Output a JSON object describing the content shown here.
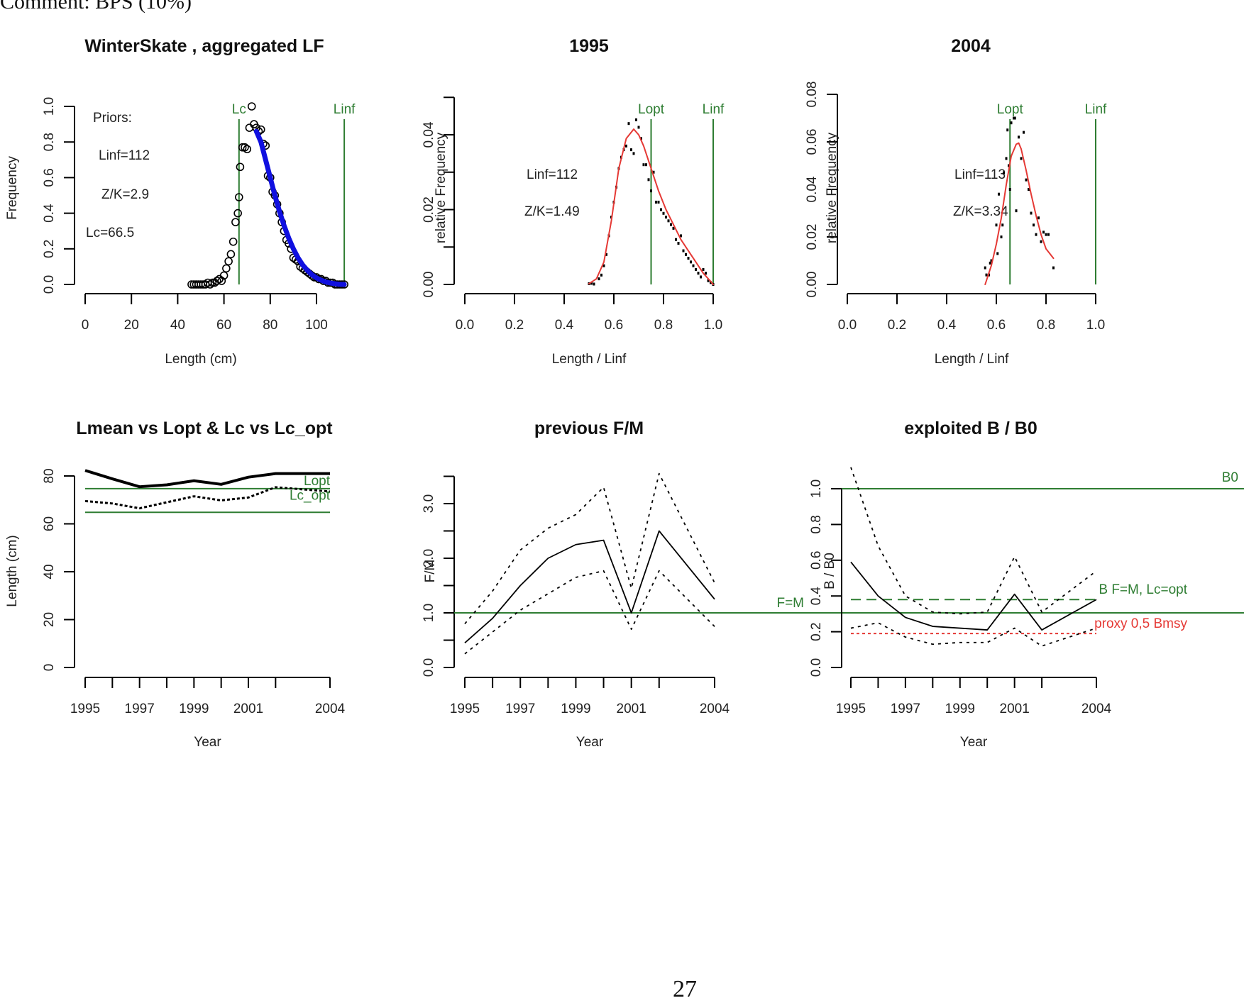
{
  "page": {
    "caption": "Comment: BPS (10%)",
    "page_number": "27"
  },
  "colors": {
    "ref_line": "#2e7d32",
    "fit_blue": "#1010e0",
    "fit_red": "#e53935",
    "data": "#000000"
  },
  "chart_data": [
    {
      "id": "aggregated-lf",
      "type": "scatter",
      "title": "WinterSkate , aggregated LF",
      "xlabel": "Length (cm)",
      "ylabel": "Frequency",
      "xlim": [
        0,
        112
      ],
      "ylim": [
        0,
        1.1
      ],
      "xticks": [
        0,
        20,
        40,
        60,
        80,
        100
      ],
      "xtick_labels": [
        "0",
        "20",
        "40",
        "60",
        "80",
        "100"
      ],
      "yticks": [
        0,
        0.2,
        0.4,
        0.6,
        0.8,
        1.0
      ],
      "ytick_labels": [
        "0.0",
        "0.2",
        "0.4",
        "0.6",
        "0.8",
        "1.0"
      ],
      "annotations": [
        "Priors:",
        "Linf=112",
        "Z/K=2.9",
        "Lc=66.5"
      ],
      "vlines": [
        {
          "label": "Lc",
          "x": 66.5
        },
        {
          "label": "Linf",
          "x": 112
        }
      ],
      "points": {
        "x": [
          46,
          47,
          48,
          49,
          50,
          51,
          52,
          53,
          54,
          55,
          56,
          57,
          58,
          59,
          60,
          61,
          62,
          63,
          64,
          65,
          66,
          66.5,
          67,
          68,
          69,
          70,
          71,
          72,
          73,
          74,
          75,
          76,
          77,
          78,
          79,
          80,
          81,
          82,
          83,
          84,
          85,
          86,
          87,
          88,
          89,
          90,
          91,
          92,
          93,
          94,
          95,
          96,
          97,
          98,
          99,
          100,
          101,
          102,
          103,
          104,
          105,
          106,
          107,
          108,
          109,
          110,
          111,
          112
        ],
        "y": [
          0,
          0,
          0,
          0,
          0,
          0,
          0,
          0.01,
          0,
          0.01,
          0.01,
          0.02,
          0.03,
          0.02,
          0.05,
          0.09,
          0.13,
          0.17,
          0.24,
          0.35,
          0.4,
          0.49,
          0.66,
          0.77,
          0.77,
          0.76,
          0.88,
          1.0,
          0.9,
          0.88,
          0.86,
          0.87,
          0.79,
          0.78,
          0.61,
          0.6,
          0.52,
          0.5,
          0.45,
          0.4,
          0.35,
          0.3,
          0.25,
          0.23,
          0.2,
          0.15,
          0.14,
          0.13,
          0.1,
          0.09,
          0.08,
          0.07,
          0.06,
          0.05,
          0.04,
          0.04,
          0.03,
          0.03,
          0.02,
          0.02,
          0.01,
          0.01,
          0.01,
          0,
          0,
          0,
          0,
          0
        ]
      },
      "fit": {
        "name": "fitted curve",
        "x": [
          74,
          76,
          78,
          80,
          82,
          84,
          86,
          88,
          90,
          92,
          94,
          96,
          98,
          100,
          102,
          104,
          106,
          108,
          110,
          112
        ],
        "y": [
          0.86,
          0.8,
          0.7,
          0.6,
          0.5,
          0.41,
          0.33,
          0.26,
          0.2,
          0.15,
          0.11,
          0.08,
          0.055,
          0.037,
          0.024,
          0.014,
          0.008,
          0.004,
          0.001,
          0
        ]
      }
    },
    {
      "id": "year-1995",
      "type": "scatter",
      "title": "1995",
      "xlabel": "Length / Linf",
      "ylabel": "relative Frequency",
      "xlim": [
        0,
        1.0
      ],
      "ylim": [
        0,
        0.05
      ],
      "xticks": [
        0,
        0.2,
        0.4,
        0.6,
        0.8,
        1.0
      ],
      "xtick_labels": [
        "0.0",
        "0.2",
        "0.4",
        "0.6",
        "0.8",
        "1.0"
      ],
      "yticks": [
        0,
        0.01,
        0.02,
        0.03,
        0.04,
        0.05
      ],
      "ytick_labels": [
        "0.00",
        "",
        "0.02",
        "",
        "0.04",
        ""
      ],
      "annotations": [
        "Linf=112",
        "Z/K=1.49"
      ],
      "vlines": [
        {
          "label": "Lopt",
          "x": 0.75
        },
        {
          "label": "Linf",
          "x": 1.0
        }
      ],
      "points": {
        "x": [
          0.5,
          0.51,
          0.52,
          0.54,
          0.55,
          0.56,
          0.57,
          0.58,
          0.59,
          0.6,
          0.61,
          0.62,
          0.63,
          0.64,
          0.65,
          0.66,
          0.67,
          0.68,
          0.69,
          0.7,
          0.71,
          0.72,
          0.73,
          0.74,
          0.75,
          0.76,
          0.77,
          0.78,
          0.79,
          0.8,
          0.81,
          0.82,
          0.83,
          0.84,
          0.85,
          0.86,
          0.87,
          0.88,
          0.89,
          0.9,
          0.91,
          0.92,
          0.93,
          0.94,
          0.95,
          0.96,
          0.97,
          0.98,
          0.99,
          1.0
        ],
        "y": [
          0.0002,
          0.0003,
          0.0001,
          0.0015,
          0.0025,
          0.005,
          0.008,
          0.013,
          0.018,
          0.022,
          0.026,
          0.031,
          0.034,
          0.036,
          0.037,
          0.043,
          0.036,
          0.035,
          0.044,
          0.042,
          0.039,
          0.032,
          0.032,
          0.028,
          0.025,
          0.03,
          0.022,
          0.022,
          0.02,
          0.019,
          0.018,
          0.017,
          0.016,
          0.015,
          0.012,
          0.011,
          0.013,
          0.009,
          0.008,
          0.007,
          0.006,
          0.005,
          0.004,
          0.003,
          0.002,
          0.004,
          0.003,
          0.001,
          0.0005,
          0
        ]
      },
      "fit": {
        "name": "fitted curve",
        "x": [
          0.5,
          0.53,
          0.56,
          0.59,
          0.62,
          0.65,
          0.68,
          0.7,
          0.72,
          0.75,
          0.78,
          0.81,
          0.84,
          0.87,
          0.9,
          0.93,
          0.96,
          0.99,
          1.0
        ],
        "y": [
          0.0002,
          0.0015,
          0.006,
          0.017,
          0.031,
          0.039,
          0.0415,
          0.04,
          0.037,
          0.031,
          0.025,
          0.02,
          0.016,
          0.012,
          0.009,
          0.006,
          0.003,
          0.0008,
          0
        ]
      }
    },
    {
      "id": "year-2004",
      "type": "scatter",
      "title": "2004",
      "xlabel": "Length / Linf",
      "ylabel": "relative Frequency",
      "xlim": [
        0,
        1.0
      ],
      "ylim": [
        0,
        0.08
      ],
      "xticks": [
        0,
        0.2,
        0.4,
        0.6,
        0.8,
        1.0
      ],
      "xtick_labels": [
        "0.0",
        "0.2",
        "0.4",
        "0.6",
        "0.8",
        "1.0"
      ],
      "yticks": [
        0,
        0.02,
        0.04,
        0.06,
        0.08
      ],
      "ytick_labels": [
        "0.00",
        "0.02",
        "0.04",
        "0.06",
        "0.08"
      ],
      "annotations": [
        "Linf=113",
        "Z/K=3.34"
      ],
      "vlines": [
        {
          "label": "Lopt",
          "x": 0.655
        },
        {
          "label": "Linf",
          "x": 1.0
        }
      ],
      "points": {
        "x": [
          0.555,
          0.56,
          0.57,
          0.575,
          0.58,
          0.6,
          0.605,
          0.61,
          0.62,
          0.625,
          0.63,
          0.64,
          0.645,
          0.65,
          0.655,
          0.66,
          0.67,
          0.675,
          0.68,
          0.69,
          0.7,
          0.71,
          0.72,
          0.73,
          0.74,
          0.75,
          0.76,
          0.77,
          0.78,
          0.79,
          0.8,
          0.81,
          0.83
        ],
        "y": [
          0.007,
          0.004,
          0.004,
          0.009,
          0.01,
          0.025,
          0.013,
          0.038,
          0.02,
          0.025,
          0.047,
          0.053,
          0.065,
          0.05,
          0.04,
          0.068,
          0.07,
          0.07,
          0.031,
          0.062,
          0.053,
          0.064,
          0.044,
          0.04,
          0.03,
          0.025,
          0.021,
          0.028,
          0.018,
          0.022,
          0.021,
          0.021,
          0.007
        ]
      },
      "fit": {
        "name": "fitted curve",
        "x": [
          0.555,
          0.58,
          0.6,
          0.62,
          0.64,
          0.66,
          0.68,
          0.69,
          0.7,
          0.72,
          0.74,
          0.76,
          0.78,
          0.8,
          0.83
        ],
        "y": [
          0.0,
          0.008,
          0.017,
          0.028,
          0.042,
          0.054,
          0.059,
          0.0595,
          0.057,
          0.048,
          0.038,
          0.029,
          0.021,
          0.015,
          0.011
        ]
      }
    },
    {
      "id": "lmean-vs-lopt",
      "type": "line",
      "title": "Lmean vs Lopt & Lc vs Lc_opt",
      "xlabel": "Year",
      "ylabel": "Length (cm)",
      "xlim": [
        1995,
        2004
      ],
      "ylim": [
        0,
        85
      ],
      "xticks": [
        1995,
        1996,
        1997,
        1998,
        1999,
        2000,
        2001,
        2002,
        2004
      ],
      "xtick_labels": [
        "1995",
        "",
        "1997",
        "",
        "1999",
        "",
        "2001",
        "",
        "2004"
      ],
      "yticks": [
        0,
        20,
        40,
        60,
        80
      ],
      "ytick_labels": [
        "0",
        "20",
        "40",
        "60",
        "80"
      ],
      "hlines": [
        {
          "label": "Lopt",
          "y": 74.7
        },
        {
          "label": "Lc_opt",
          "y": 64.8
        }
      ],
      "x": [
        1995,
        1996,
        1997,
        1998,
        1999,
        2000,
        2001,
        2002,
        2004
      ],
      "series": [
        {
          "name": "Lmean",
          "style": "solid-thick",
          "values": [
            82.3,
            78.8,
            75.5,
            76.3,
            78.0,
            76.5,
            79.5,
            81.0,
            81.0
          ]
        },
        {
          "name": "Lc",
          "style": "dotted-thick",
          "values": [
            69.5,
            68.5,
            66.5,
            69.0,
            71.5,
            69.8,
            71.0,
            75.3,
            73.5
          ]
        }
      ]
    },
    {
      "id": "previous-fm",
      "type": "line",
      "title": "previous F/M",
      "xlabel": "Year",
      "ylabel": "F/M",
      "xlim": [
        1995,
        2004
      ],
      "ylim": [
        0,
        3.6
      ],
      "xticks": [
        1995,
        1996,
        1997,
        1998,
        1999,
        2000,
        2001,
        2002,
        2004
      ],
      "xtick_labels": [
        "1995",
        "",
        "1997",
        "",
        "1999",
        "",
        "2001",
        "",
        "2004"
      ],
      "yticks": [
        0,
        0.5,
        1.0,
        1.5,
        2.0,
        2.5,
        3.0,
        3.5
      ],
      "ytick_labels": [
        "0.0",
        "",
        "1.0",
        "",
        "2.0",
        "",
        "3.0",
        ""
      ],
      "hlines": [
        {
          "label": "F=M",
          "y": 1.0
        }
      ],
      "x": [
        1995,
        1996,
        1997,
        1998,
        1999,
        2000,
        2001,
        2002,
        2004
      ],
      "series": [
        {
          "name": "F/M",
          "style": "solid",
          "values": [
            0.45,
            0.9,
            1.5,
            2.0,
            2.25,
            2.33,
            1.0,
            2.5,
            1.25
          ]
        },
        {
          "name": "upper",
          "style": "dotted",
          "values": [
            0.8,
            1.4,
            2.15,
            2.55,
            2.8,
            3.3,
            1.45,
            3.55,
            1.55
          ]
        },
        {
          "name": "lower",
          "style": "dotted",
          "values": [
            0.25,
            0.65,
            1.05,
            1.35,
            1.65,
            1.77,
            0.7,
            1.77,
            0.75
          ]
        }
      ]
    },
    {
      "id": "exploited-b-b0",
      "type": "line",
      "title": "exploited B / B0",
      "xlabel": "Year",
      "ylabel": "B / B0",
      "xlim": [
        1995,
        2004
      ],
      "ylim": [
        0,
        1.13
      ],
      "xticks": [
        1995,
        1996,
        1997,
        1998,
        1999,
        2000,
        2001,
        2002,
        2004
      ],
      "xtick_labels": [
        "1995",
        "",
        "1997",
        "",
        "1999",
        "",
        "2001",
        "",
        "2004"
      ],
      "yticks": [
        0,
        0.2,
        0.4,
        0.6,
        0.8,
        1.0
      ],
      "ytick_labels": [
        "0.0",
        "0.2",
        "0.4",
        "0.6",
        "0.8",
        "1.0"
      ],
      "hlines": [
        {
          "label": "B0",
          "y": 1.0,
          "style": "solid",
          "color": "green"
        },
        {
          "label": "B F=M, Lc=opt",
          "y": 0.38,
          "style": "dashed",
          "color": "green"
        },
        {
          "label": "proxy 0.5 Bmsy",
          "y": 0.19,
          "style": "dotted",
          "color": "red"
        }
      ],
      "x": [
        1995,
        1996,
        1997,
        1998,
        1999,
        2000,
        2001,
        2002,
        2004
      ],
      "series": [
        {
          "name": "B/B0",
          "style": "solid",
          "values": [
            0.59,
            0.4,
            0.28,
            0.23,
            0.22,
            0.21,
            0.41,
            0.21,
            0.38
          ]
        },
        {
          "name": "upper",
          "style": "dotted",
          "values": [
            1.12,
            0.68,
            0.4,
            0.31,
            0.3,
            0.31,
            0.62,
            0.31,
            0.54
          ]
        },
        {
          "name": "lower",
          "style": "dotted",
          "values": [
            0.22,
            0.25,
            0.17,
            0.13,
            0.14,
            0.14,
            0.22,
            0.12,
            0.22
          ]
        }
      ],
      "annotation_labels": {
        "b0": "B0",
        "bfm": "B F=M, Lc=opt",
        "proxy": "proxy 0,5 Bmsy"
      }
    }
  ]
}
